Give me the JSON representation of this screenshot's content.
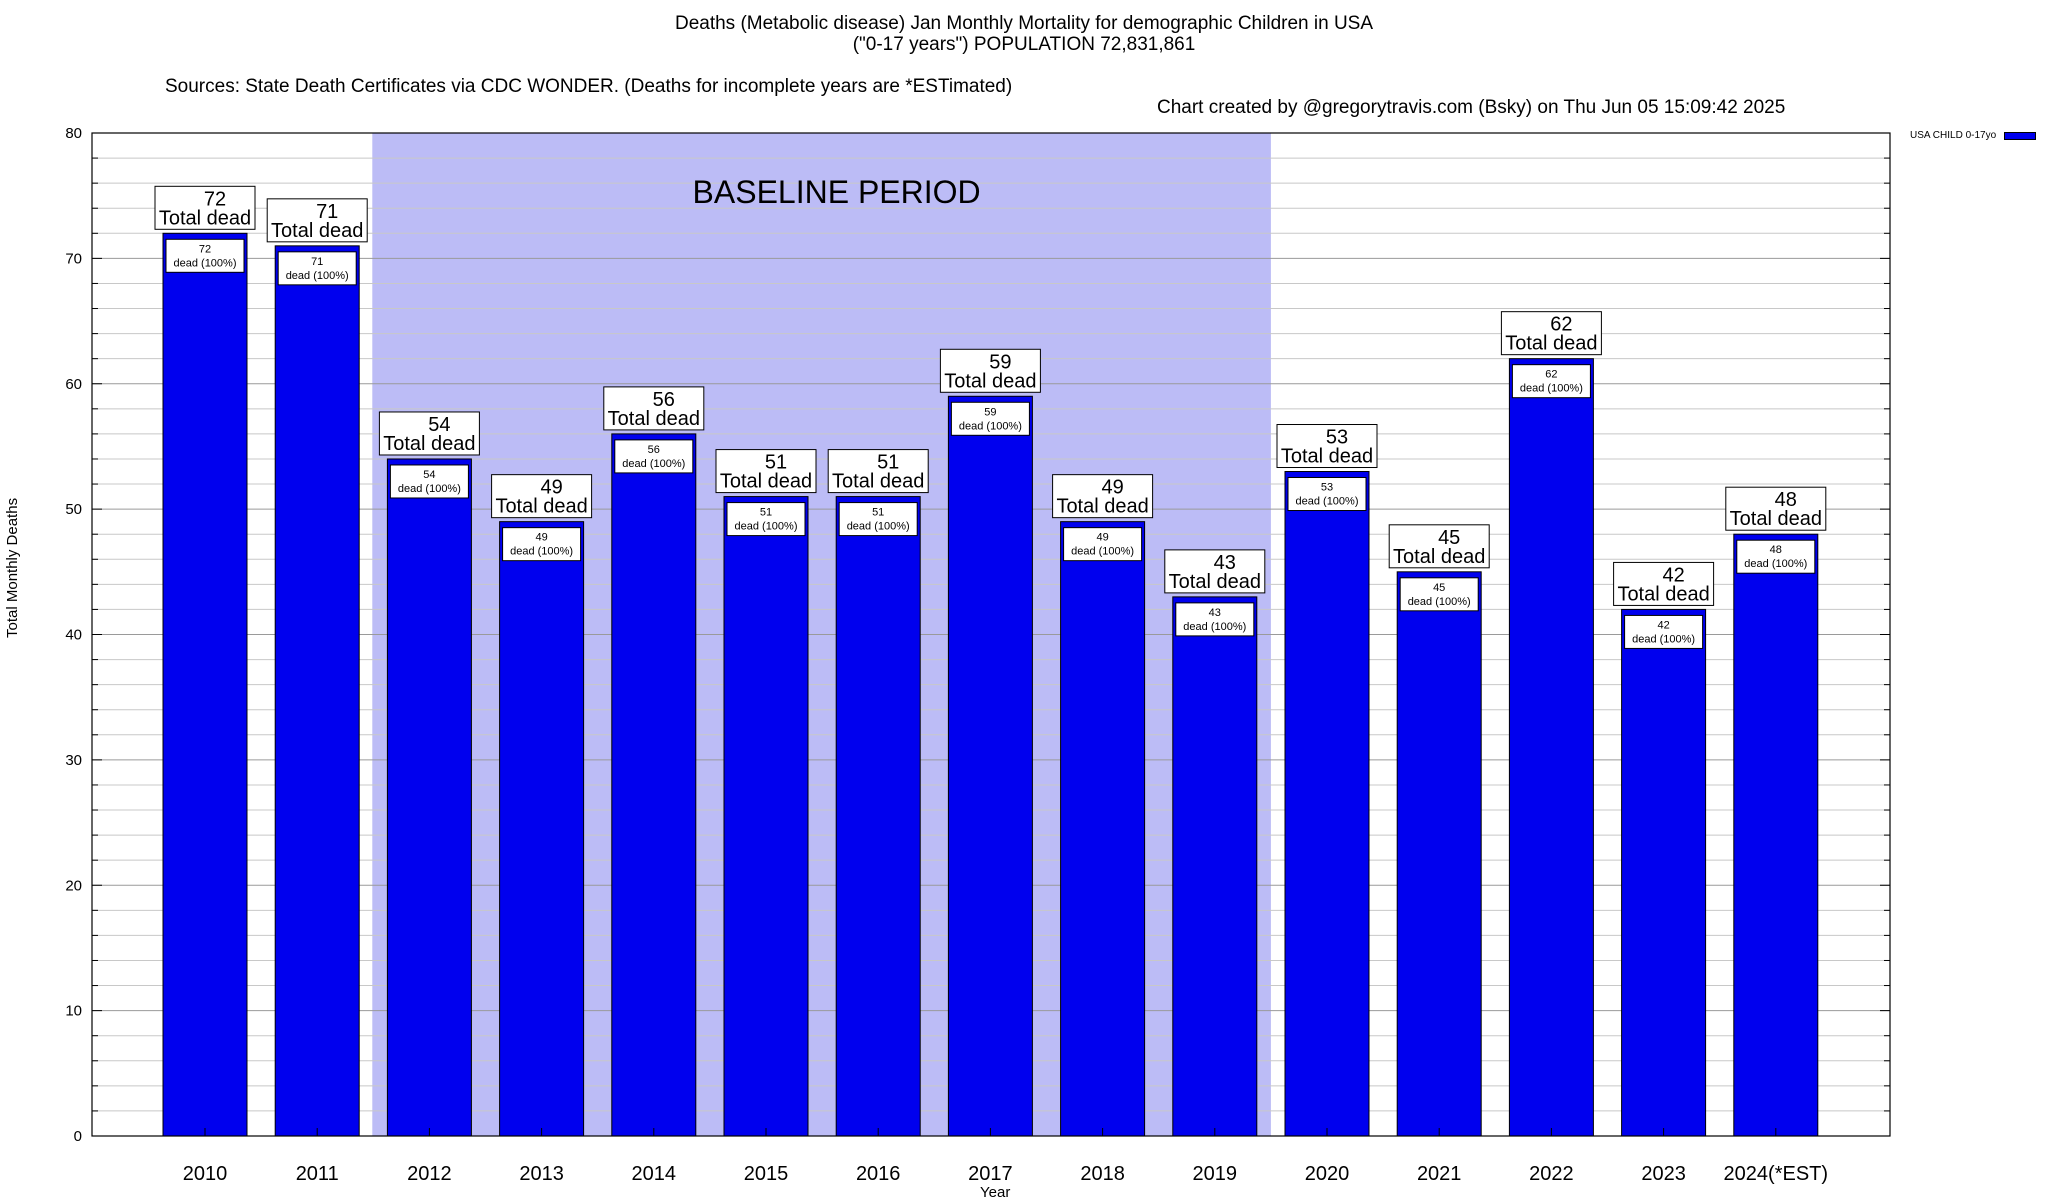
{
  "header": {
    "line1": "Deaths (Metabolic disease) Jan Monthly Mortality for demographic Children in USA",
    "line2": "(\"0-17 years\") POPULATION 72,831,861",
    "sources": "Sources: State Death Certificates via CDC WONDER. (Deaths for incomplete years are *ESTimated)",
    "credit": "Chart created by @gregorytravis.com (Bsky) on Thu Jun 05 15:09:42 2025"
  },
  "chart_data": {
    "type": "bar",
    "title": "Deaths (Metabolic disease) Jan Monthly Mortality for demographic Children in USA",
    "xlabel": "Year",
    "ylabel": "Total Monthly Deaths",
    "ylim": [
      0,
      80
    ],
    "yticks": [
      0,
      10,
      20,
      30,
      40,
      50,
      60,
      70,
      80
    ],
    "grid": true,
    "legend_position": "top-right",
    "categories": [
      "2010",
      "2011",
      "2012",
      "2013",
      "2014",
      "2015",
      "2016",
      "2017",
      "2018",
      "2019",
      "2020",
      "2021",
      "2022",
      "2023",
      "2024(*EST)"
    ],
    "series": [
      {
        "name": "USA CHILD 0-17yo",
        "color": "#0000ee",
        "values": [
          72,
          71,
          54,
          49,
          56,
          51,
          51,
          59,
          49,
          43,
          53,
          45,
          62,
          42,
          48
        ]
      }
    ],
    "top_label_suffix": "Total dead",
    "inner_label_suffix": "dead (100%)",
    "baseline": {
      "label": "BASELINE PERIOD",
      "from": "2012",
      "to": "2019",
      "color": "#bcbcf6"
    }
  }
}
